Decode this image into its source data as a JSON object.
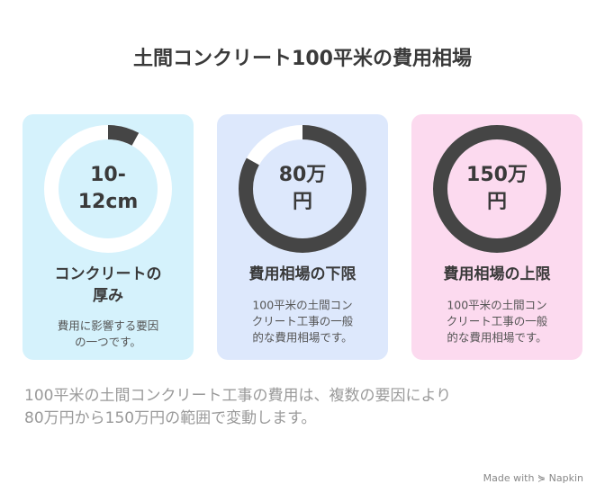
{
  "title": "土間コンクリート100平米の費用相場",
  "cards": [
    {
      "value_lines": [
        "10-",
        "12cm"
      ],
      "fill_percent": 8,
      "color": "#d5f2fc",
      "title_lines": [
        "コンクリートの",
        "厚み"
      ],
      "description_lines": [
        "費用に影響する要因",
        "の一つです。"
      ]
    },
    {
      "value_lines": [
        "80万",
        "円"
      ],
      "fill_percent": 83,
      "color": "#dde8fc",
      "title_lines": [
        "費用相場の下限"
      ],
      "description_lines": [
        "100平米の土間コン",
        "クリート工事の一般",
        "的な費用相場です。"
      ]
    },
    {
      "value_lines": [
        "150万",
        "円"
      ],
      "fill_percent": 100,
      "color": "#fcdaef",
      "title_lines": [
        "費用相場の上限"
      ],
      "description_lines": [
        "100平米の土間コン",
        "クリート工事の一般",
        "的な費用相場です。"
      ]
    }
  ],
  "summary_lines": [
    "100平米の土間コンクリート工事の費用は、複数の要因により",
    "80万円から150万円の範囲で変動します。"
  ],
  "footer": "Made with ⋟ Napkin"
}
